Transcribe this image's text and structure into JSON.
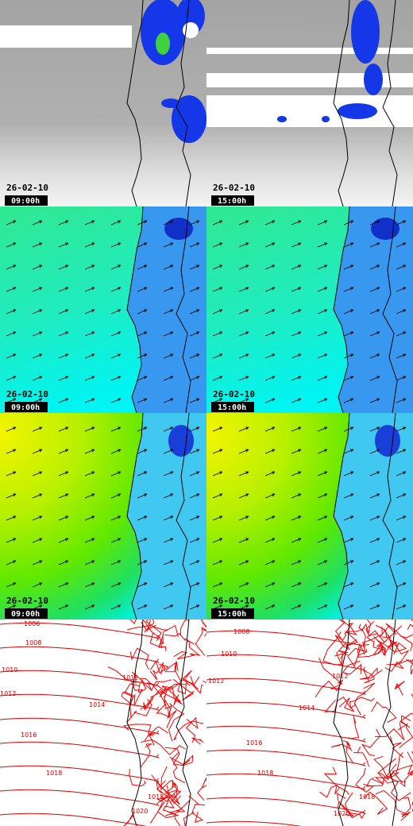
{
  "panels": [
    {
      "date": "26-02-10",
      "time": "09:00h"
    },
    {
      "date": "26-02-10",
      "time": "15:00h"
    },
    {
      "date": "26-02-10",
      "time": "09:00h"
    },
    {
      "date": "26-02-10",
      "time": "15:00h"
    },
    {
      "date": "26-02-10",
      "time": "09:00h"
    },
    {
      "date": "26-02-10",
      "time": "15:00h"
    },
    {
      "contour_labels": [
        "1006",
        "1008",
        "1010",
        "1012",
        "1012",
        "1014",
        "1016",
        "1018",
        "1018",
        "1020"
      ]
    },
    {
      "contour_labels": [
        "1008",
        "1010",
        "1012",
        "1012",
        "1014",
        "1016",
        "1018",
        "1018",
        "1020"
      ]
    }
  ]
}
